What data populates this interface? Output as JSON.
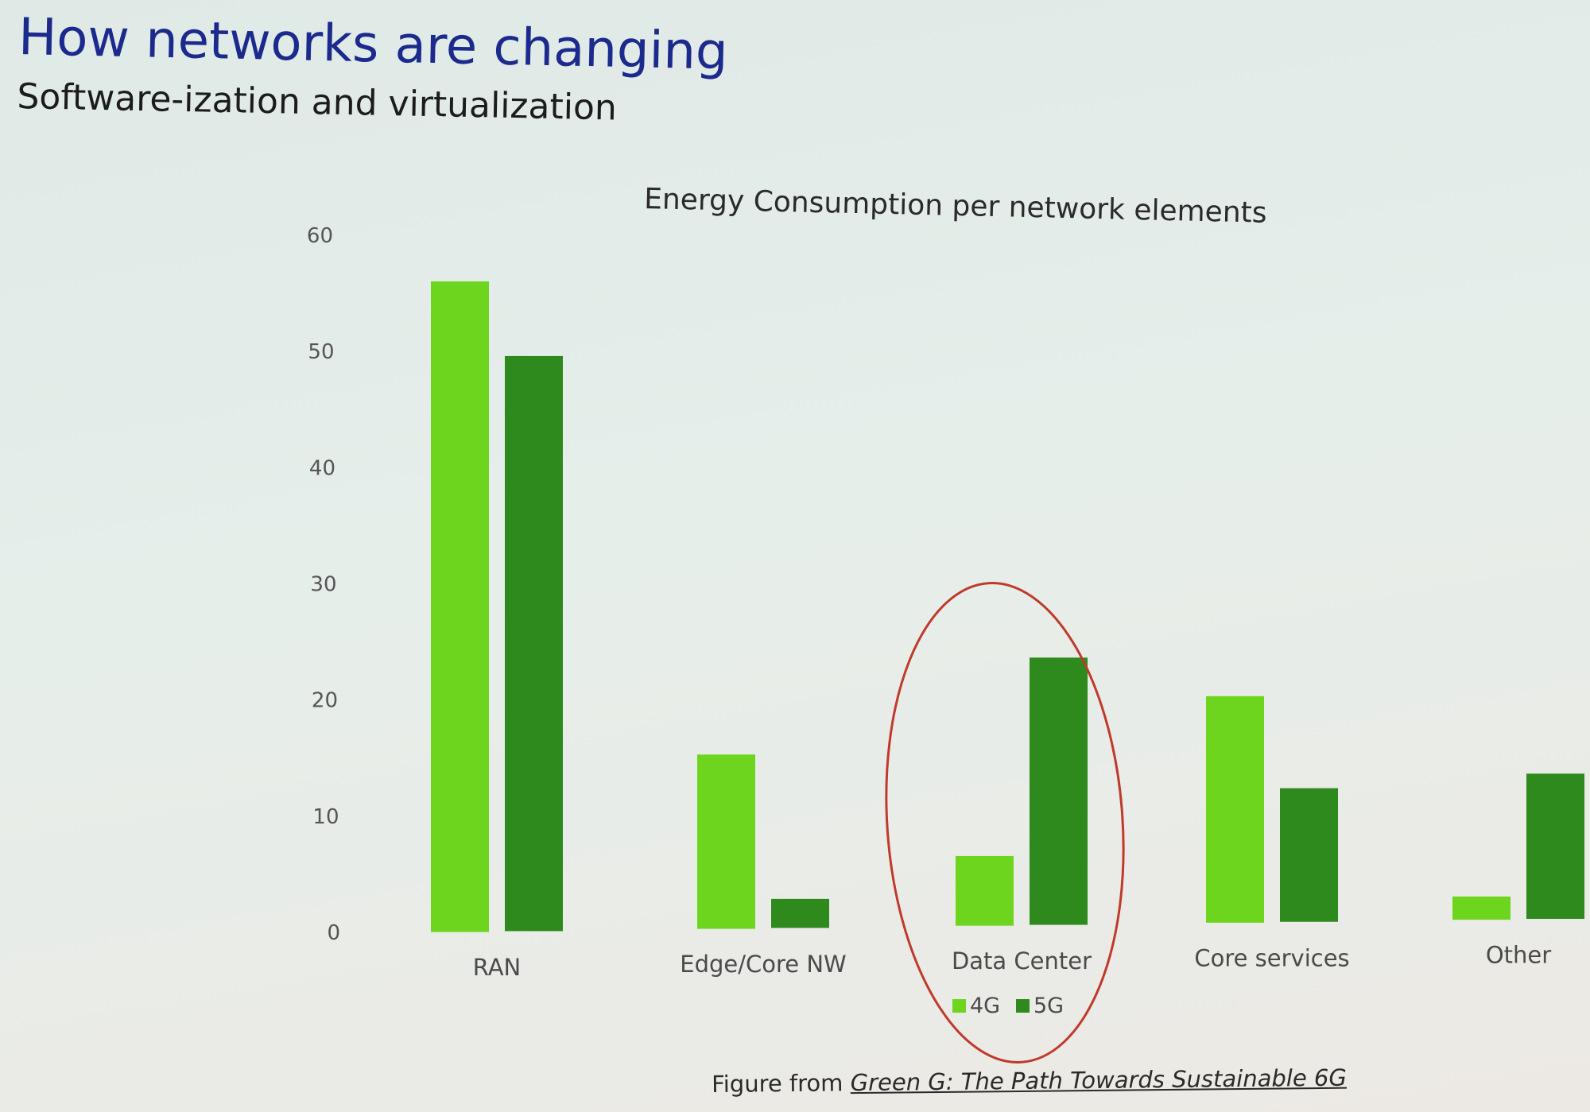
{
  "slide": {
    "title": "How networks are changing",
    "subtitle": "Software-ization and virtualization",
    "caption_prefix": "Figure from ",
    "caption_reference": "Green G: The Path Towards Sustainable 6G"
  },
  "colors": {
    "series_4g": "#6ed51e",
    "series_5g": "#2e8a1c",
    "highlight_ellipse": "#c0392b"
  },
  "chart_data": {
    "type": "bar",
    "title": "Energy Consumption per network elements",
    "categories": [
      "RAN",
      "Edge/Core NW",
      "Data Center",
      "Core services",
      "Other"
    ],
    "series": [
      {
        "name": "4G",
        "values": [
          56,
          15,
          6,
          19.5,
          2
        ]
      },
      {
        "name": "5G",
        "values": [
          49.5,
          2.5,
          23,
          11.5,
          12.5
        ]
      }
    ],
    "yticks": [
      0,
      10,
      20,
      30,
      40,
      50,
      60
    ],
    "ylim": [
      0,
      60
    ],
    "grid": false,
    "legend_position": "bottom",
    "highlighted_category": "Data Center"
  }
}
